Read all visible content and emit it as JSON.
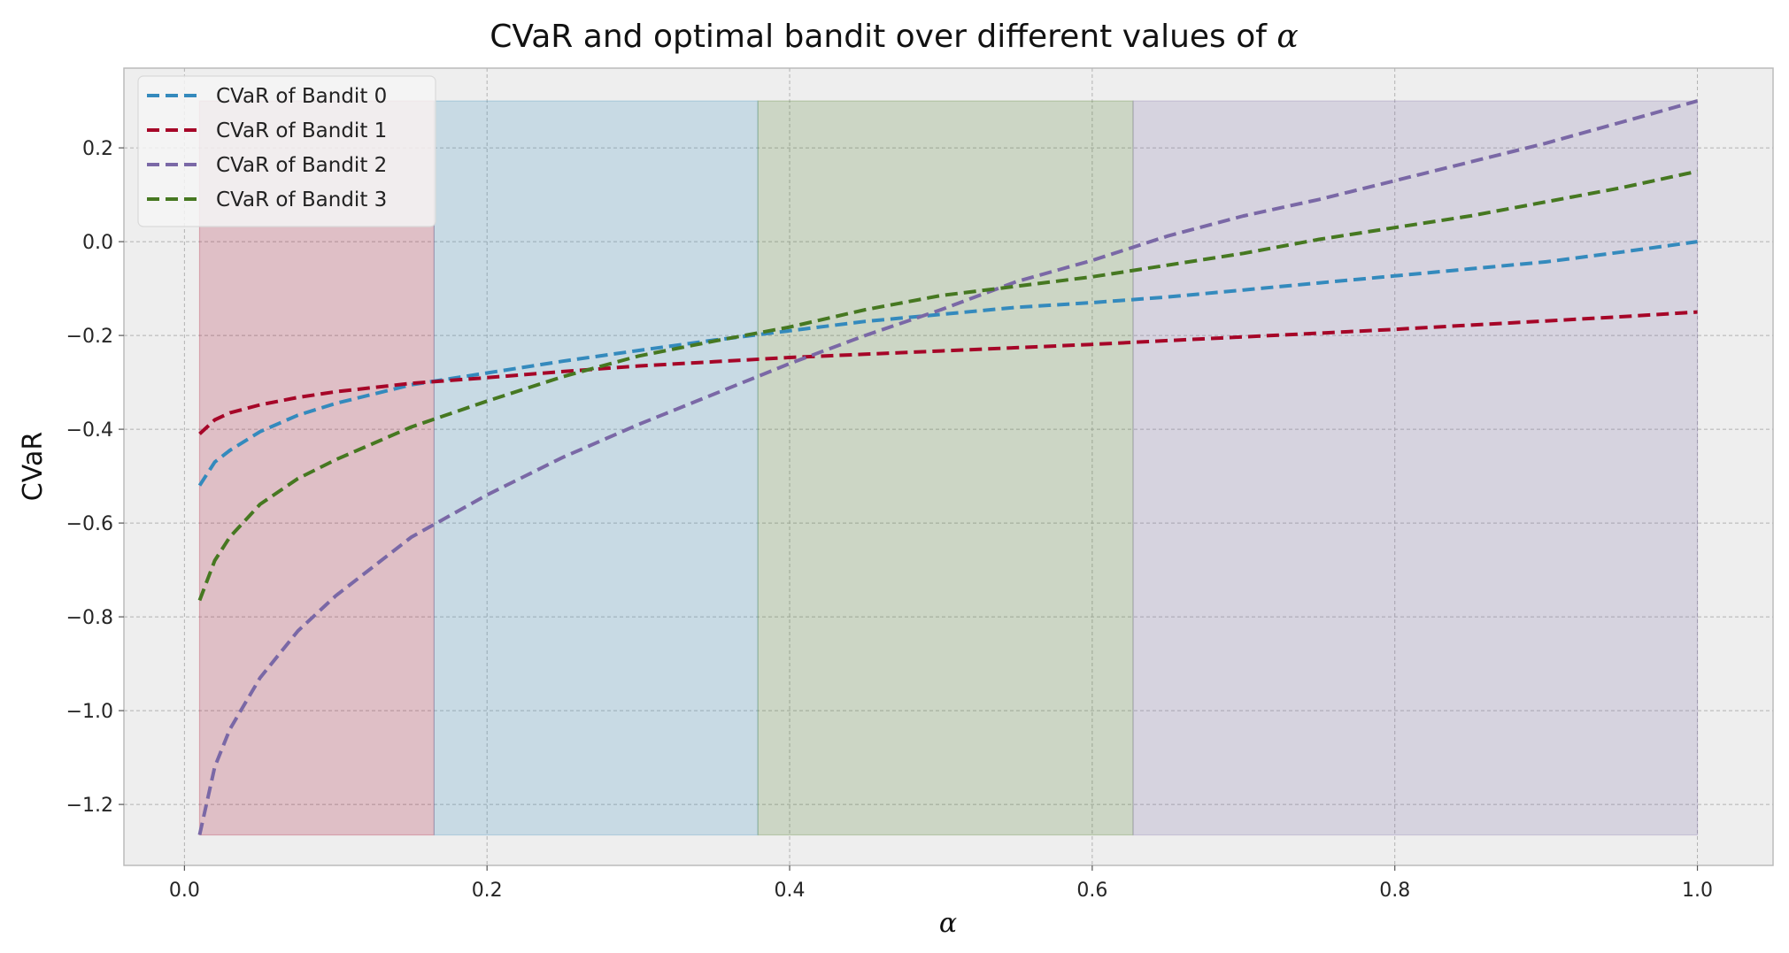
{
  "chart_data": {
    "type": "line",
    "title": "CVaR and optimal bandit over different values of α",
    "title_prefix": "CVaR and optimal bandit over different values of ",
    "title_symbol": "α",
    "xlabel": "α",
    "ylabel": "CVaR",
    "xlim": [
      -0.04,
      1.05
    ],
    "ylim": [
      -1.33,
      0.37
    ],
    "xticks": [
      0.0,
      0.2,
      0.4,
      0.6,
      0.8,
      1.0
    ],
    "xtick_labels": [
      "0.0",
      "0.2",
      "0.4",
      "0.6",
      "0.8",
      "1.0"
    ],
    "yticks": [
      0.2,
      0.0,
      -0.2,
      -0.4,
      -0.6,
      -0.8,
      -1.0,
      -1.2
    ],
    "ytick_labels": [
      "0.2",
      "0.0",
      "−0.2",
      "−0.4",
      "−0.6",
      "−0.8",
      "−1.0",
      "−1.2"
    ],
    "grid": true,
    "legend_position": "upper-left",
    "background": "#eeeeee",
    "regions": [
      {
        "x0": 0.01,
        "x1": 0.165,
        "y0": -1.265,
        "y1": 0.3,
        "color": "#a60628"
      },
      {
        "x0": 0.165,
        "x1": 0.379,
        "y0": -1.265,
        "y1": 0.3,
        "color": "#348abd"
      },
      {
        "x0": 0.379,
        "x1": 0.627,
        "y0": -1.265,
        "y1": 0.3,
        "color": "#467821"
      },
      {
        "x0": 0.627,
        "x1": 1.0,
        "y0": -1.265,
        "y1": 0.3,
        "color": "#7a68a6"
      }
    ],
    "x": [
      0.01,
      0.02,
      0.03,
      0.05,
      0.075,
      0.1,
      0.15,
      0.2,
      0.25,
      0.3,
      0.35,
      0.4,
      0.45,
      0.5,
      0.55,
      0.6,
      0.65,
      0.7,
      0.75,
      0.8,
      0.85,
      0.9,
      0.95,
      1.0
    ],
    "series": [
      {
        "name": "CVaR of Bandit 0",
        "color": "#348abd",
        "values": [
          -0.52,
          -0.47,
          -0.445,
          -0.405,
          -0.37,
          -0.345,
          -0.305,
          -0.28,
          -0.255,
          -0.232,
          -0.21,
          -0.19,
          -0.17,
          -0.155,
          -0.14,
          -0.13,
          -0.118,
          -0.103,
          -0.088,
          -0.073,
          -0.058,
          -0.043,
          -0.022,
          0.0
        ]
      },
      {
        "name": "CVaR of Bandit 1",
        "color": "#a60628",
        "values": [
          -0.41,
          -0.38,
          -0.365,
          -0.348,
          -0.332,
          -0.32,
          -0.302,
          -0.29,
          -0.277,
          -0.265,
          -0.256,
          -0.247,
          -0.24,
          -0.233,
          -0.226,
          -0.219,
          -0.211,
          -0.203,
          -0.195,
          -0.187,
          -0.178,
          -0.169,
          -0.16,
          -0.15
        ]
      },
      {
        "name": "CVaR of Bandit 2",
        "color": "#7a68a6",
        "values": [
          -1.265,
          -1.12,
          -1.04,
          -0.93,
          -0.83,
          -0.755,
          -0.63,
          -0.54,
          -0.46,
          -0.39,
          -0.325,
          -0.26,
          -0.2,
          -0.145,
          -0.085,
          -0.04,
          0.012,
          0.055,
          0.09,
          0.13,
          0.17,
          0.21,
          0.255,
          0.3
        ]
      },
      {
        "name": "CVaR of Bandit 3",
        "color": "#467821",
        "values": [
          -0.765,
          -0.68,
          -0.63,
          -0.56,
          -0.505,
          -0.465,
          -0.395,
          -0.34,
          -0.288,
          -0.244,
          -0.212,
          -0.182,
          -0.145,
          -0.115,
          -0.095,
          -0.075,
          -0.05,
          -0.025,
          0.005,
          0.03,
          0.055,
          0.085,
          0.115,
          0.15
        ]
      }
    ]
  }
}
